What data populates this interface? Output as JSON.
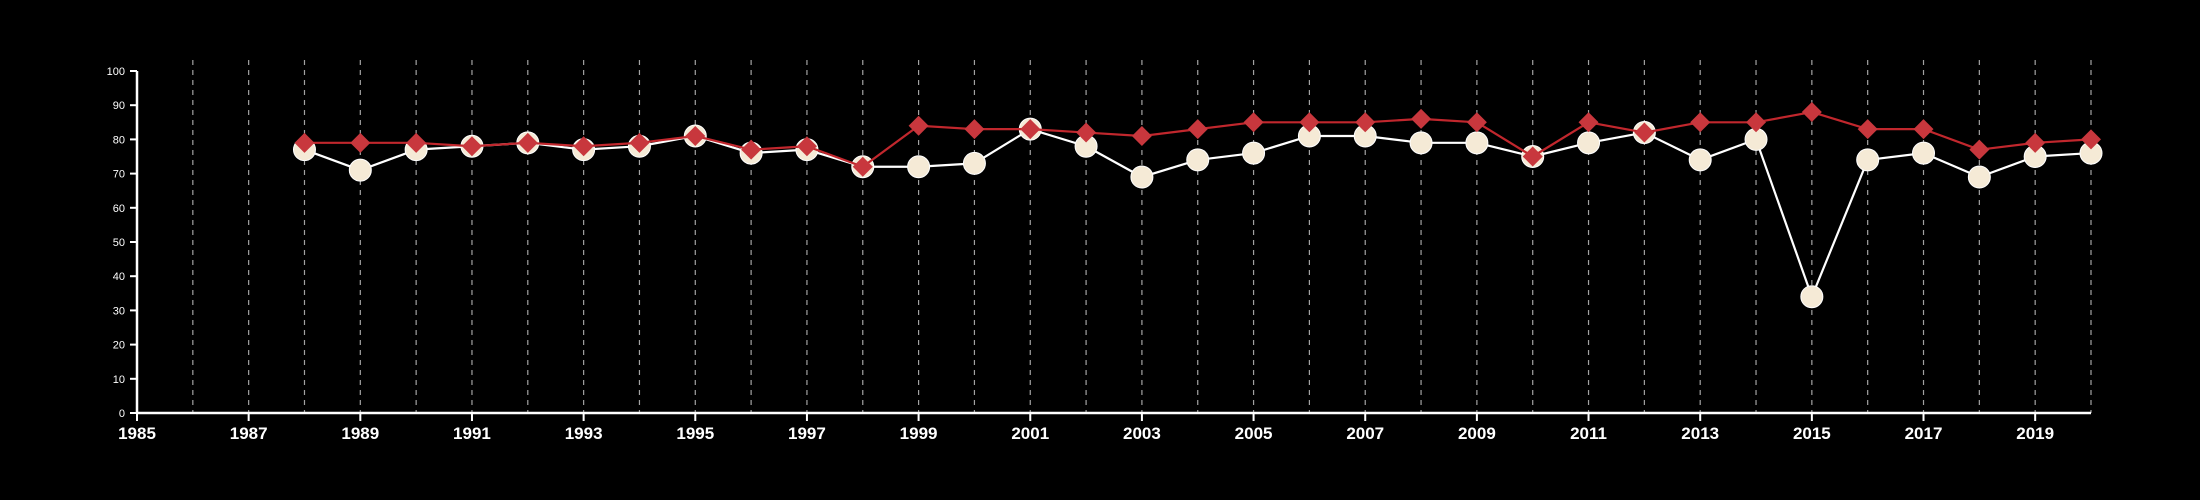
{
  "chart_data": {
    "type": "line",
    "title": "",
    "xlabel": "",
    "ylabel": "",
    "xlim": [
      1985,
      2020
    ],
    "ylim": [
      0,
      100
    ],
    "x_ticks": [
      1985,
      1987,
      1989,
      1991,
      1993,
      1995,
      1997,
      1999,
      2001,
      2003,
      2005,
      2007,
      2009,
      2011,
      2013,
      2015,
      2017,
      2019
    ],
    "y_ticks": [
      0,
      10,
      20,
      30,
      40,
      50,
      60,
      70,
      80,
      90,
      100
    ],
    "x_tick_labels": [
      "1985",
      "1987",
      "1989",
      "1991",
      "1993",
      "1995",
      "1997",
      "1999",
      "2001",
      "2003",
      "2005",
      "2007",
      "2009",
      "2011",
      "2013",
      "2015",
      "2017",
      "2019"
    ],
    "y_tick_labels": [
      "0",
      "10",
      "20",
      "30",
      "40",
      "50",
      "60",
      "70",
      "80",
      "90",
      "100"
    ],
    "grid": "vertical dashed lines at each year",
    "background": "#000000",
    "axis_color": "#ffffff",
    "grid_color": "#c0c0c0",
    "x": [
      1988,
      1989,
      1990,
      1991,
      1992,
      1993,
      1994,
      1995,
      1996,
      1997,
      1998,
      1999,
      2000,
      2001,
      2002,
      2003,
      2004,
      2005,
      2006,
      2007,
      2008,
      2009,
      2010,
      2011,
      2012,
      2013,
      2014,
      2015,
      2016,
      2017,
      2018,
      2019,
      2020
    ],
    "series": [
      {
        "marker": "circle",
        "line_color": "#ffffff",
        "marker_color": "#f5ead6",
        "values": [
          77,
          71,
          77,
          78,
          79,
          77,
          78,
          81,
          76,
          77,
          72,
          72,
          73,
          83,
          78,
          69,
          74,
          76,
          81,
          81,
          79,
          79,
          75,
          79,
          82,
          74,
          80,
          34,
          74,
          76,
          69,
          75,
          76
        ]
      },
      {
        "marker": "diamond",
        "line_color": "#c1272d",
        "marker_color": "#c8373d",
        "values": [
          79,
          79,
          79,
          78,
          79,
          78,
          79,
          81,
          77,
          78,
          72,
          84,
          83,
          83,
          82,
          81,
          83,
          85,
          85,
          85,
          86,
          85,
          75,
          85,
          82,
          85,
          85,
          88,
          83,
          83,
          77,
          79,
          80
        ]
      }
    ]
  }
}
